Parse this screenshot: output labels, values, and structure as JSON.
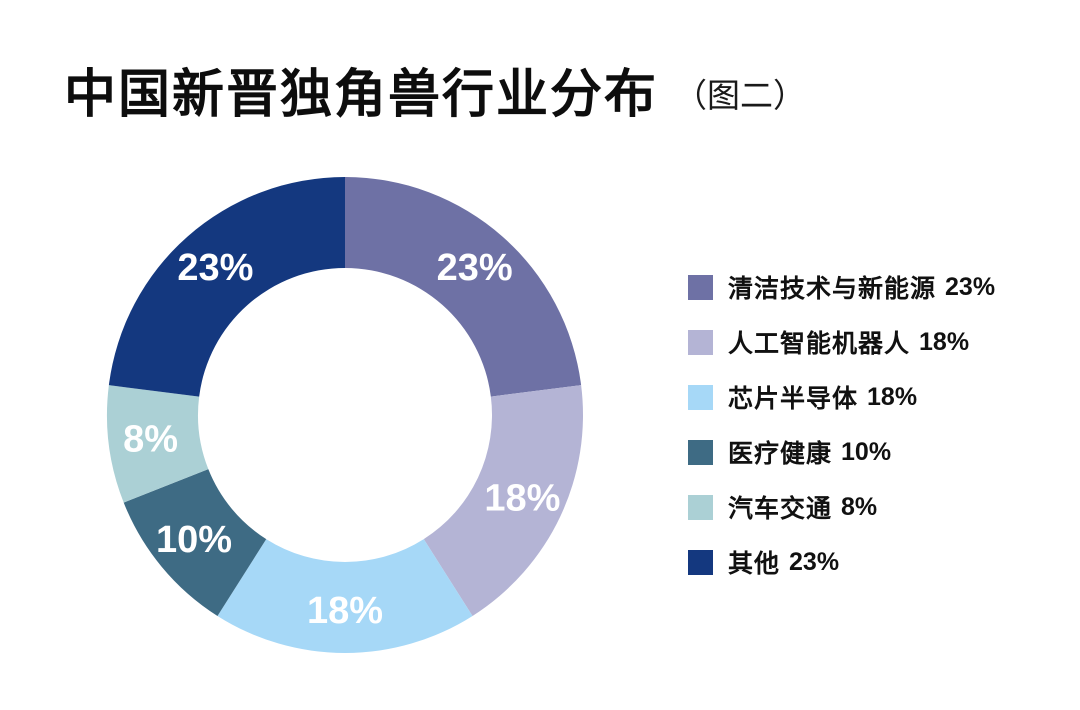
{
  "title": {
    "text": "中国新晋独角兽行业分布",
    "suffix": "（图二）"
  },
  "chart_data": {
    "type": "pie",
    "donut": true,
    "title": "中国新晋独角兽行业分布",
    "subtitle": "（图二）",
    "start_angle_deg": 0,
    "direction": "clockwise",
    "categories": [
      "清洁技术与新能源",
      "人工智能机器人",
      "芯片半导体",
      "医疗健康",
      "汽车交通",
      "其他"
    ],
    "values": [
      23,
      18,
      18,
      10,
      8,
      23
    ],
    "unit": "%",
    "slice_labels": [
      "23%",
      "18%",
      "18%",
      "10%",
      "8%",
      "23%"
    ],
    "colors": [
      "#6e71a5",
      "#b4b4d5",
      "#a6d8f7",
      "#3e6b84",
      "#abd0d5",
      "#14387f"
    ],
    "slice_label_color": "#ffffff",
    "legend_position": "right",
    "legend_text_color": "#111111",
    "background_color": "#ffffff"
  }
}
